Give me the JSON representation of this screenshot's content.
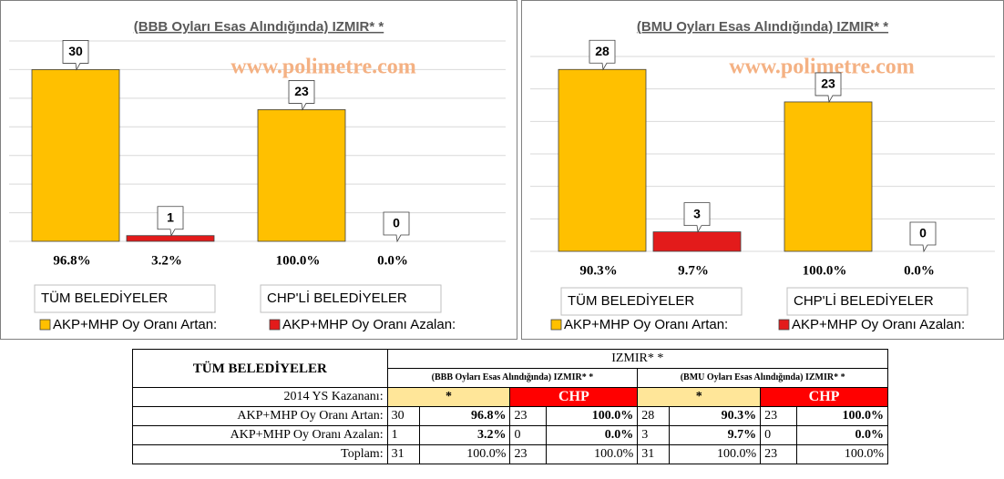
{
  "chart_data": [
    {
      "type": "bar",
      "title": "(BBB Oyları Esas Alındığında) IZMIR* *",
      "watermark": "www.polimetre.com",
      "categories": [
        "TÜM BELEDİYELER",
        "CHP'Lİ BELEDİYELER"
      ],
      "series": [
        {
          "name": "AKP+MHP Oy Oranı Artan:",
          "color": "#ffc000",
          "values": [
            30,
            23
          ],
          "percent_labels": [
            "96.8%",
            "100.0%"
          ]
        },
        {
          "name": "AKP+MHP Oy Oranı Azalan:",
          "color": "#e31b1b",
          "values": [
            1,
            0
          ],
          "percent_labels": [
            "3.2%",
            "0.0%"
          ]
        }
      ],
      "ylim": [
        0,
        35
      ],
      "yticks": [
        0,
        5,
        10,
        15,
        20,
        25,
        30,
        35
      ],
      "grid": true
    },
    {
      "type": "bar",
      "title": "(BMU Oyları Esas Alındığında) IZMIR* *",
      "watermark": "www.polimetre.com",
      "categories": [
        "TÜM BELEDİYELER",
        "CHP'Lİ BELEDİYELER"
      ],
      "series": [
        {
          "name": "AKP+MHP Oy Oranı Artan:",
          "color": "#ffc000",
          "values": [
            28,
            23
          ],
          "percent_labels": [
            "90.3%",
            "100.0%"
          ]
        },
        {
          "name": "AKP+MHP Oy Oranı Azalan:",
          "color": "#e31b1b",
          "values": [
            3,
            0
          ],
          "percent_labels": [
            "9.7%",
            "0.0%"
          ]
        }
      ],
      "ylim": [
        0,
        30
      ],
      "yticks": [
        0,
        5,
        10,
        15,
        20,
        25,
        30
      ],
      "grid": true
    }
  ],
  "table": {
    "header": "TÜM BELEDİYELER",
    "group": "IZMIR* *",
    "subgroups": [
      "(BBB Oyları Esas Alındığında) IZMIR* *",
      "(BMU Oyları Esas Alındığında) IZMIR* *"
    ],
    "winner_label": "2014 YS Kazananı:",
    "winners": [
      "*",
      "CHP",
      "*",
      "CHP"
    ],
    "rows": [
      [
        "AKP+MHP Oy Oranı Artan:",
        "30",
        "96.8%",
        "23",
        "100.0%",
        "28",
        "90.3%",
        "23",
        "100.0%"
      ],
      [
        "AKP+MHP Oy Oranı Azalan:",
        "1",
        "3.2%",
        "0",
        "0.0%",
        "3",
        "9.7%",
        "0",
        "0.0%"
      ],
      [
        "Toplam:",
        "31",
        "100.0%",
        "23",
        "100.0%",
        "31",
        "100.0%",
        "23",
        "100.0%"
      ]
    ]
  }
}
